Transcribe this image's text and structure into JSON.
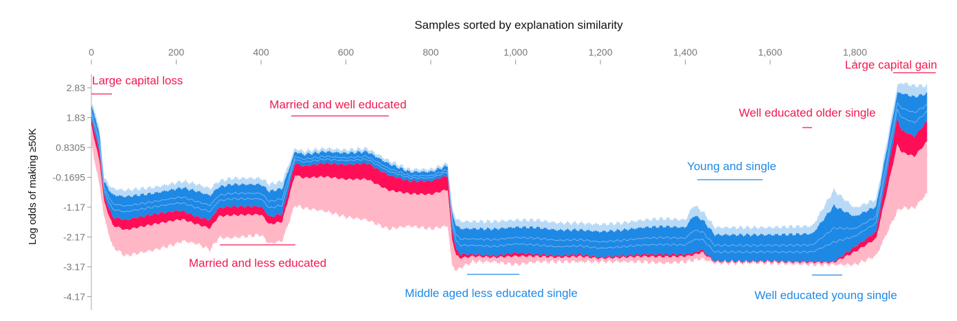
{
  "chart_data": {
    "type": "area",
    "title": "Samples sorted by explanation similarity",
    "xlabel": "",
    "ylabel": "Log odds of making ≥50K",
    "xlim": [
      0,
      1980
    ],
    "ylim": [
      -4.5,
      3.4
    ],
    "grid": false,
    "x_ticks": [
      0,
      200,
      400,
      600,
      800,
      1000,
      1200,
      1400,
      1600,
      1800
    ],
    "x_tick_labels": [
      "0",
      "200",
      "400",
      "600",
      "800",
      "1,000",
      "1,200",
      "1,400",
      "1,600",
      "1,800"
    ],
    "y_ticks": [
      2.83,
      1.83,
      0.8305,
      -0.1695,
      -1.17,
      -2.17,
      -3.17,
      -4.17
    ],
    "y_tick_labels": [
      "2.83",
      "1.83",
      "0.8305",
      "-0.1695",
      "-1.17",
      "-2.17",
      "-3.17",
      "-4.17"
    ],
    "colors": {
      "positive": "#ff0d57",
      "positive_light": "#ffb7c5",
      "negative": "#1e88e5",
      "negative_light": "#b8daf7",
      "annot_red": "#f0194f",
      "annot_blue": "#1e88e5"
    },
    "series": [
      {
        "x": [
          0,
          10,
          20,
          30,
          50,
          80,
          150,
          200,
          215,
          250,
          280,
          300,
          330,
          400,
          420,
          450,
          480,
          500,
          550,
          600,
          650,
          700,
          750,
          800,
          840,
          850,
          860,
          870,
          900,
          950,
          1000,
          1050,
          1100,
          1150,
          1200,
          1250,
          1300,
          1350,
          1400,
          1420,
          1440,
          1470,
          1500,
          1600,
          1700,
          1750,
          1800,
          1850,
          1900,
          1910,
          1940,
          1970
        ],
        "output": [
          1.8,
          1.2,
          0.6,
          -0.8,
          -1.5,
          -1.6,
          -1.4,
          -1.3,
          -1.3,
          -1.5,
          -1.6,
          -1.2,
          -1.15,
          -1.15,
          -1.5,
          -1.4,
          0.3,
          0.2,
          0.3,
          0.25,
          0.3,
          -0.1,
          -0.3,
          -0.3,
          -0.1,
          -1.9,
          -2.6,
          -2.75,
          -2.75,
          -2.8,
          -2.7,
          -2.75,
          -2.8,
          -2.75,
          -2.85,
          -2.8,
          -2.75,
          -2.75,
          -2.75,
          -2.7,
          -2.6,
          -3.0,
          -3.0,
          -3.0,
          -3.0,
          -3.0,
          -2.5,
          -2.0,
          1.8,
          1.4,
          1.2,
          1.7
        ],
        "top": [
          2.3,
          2.0,
          1.3,
          -0.2,
          -0.55,
          -0.6,
          -0.5,
          -0.35,
          -0.3,
          -0.4,
          -0.55,
          -0.3,
          -0.2,
          -0.2,
          -0.4,
          -0.3,
          0.8,
          0.7,
          0.8,
          0.75,
          0.8,
          0.4,
          0.1,
          0.1,
          0.3,
          -1.2,
          -1.55,
          -1.65,
          -1.65,
          -1.65,
          -1.6,
          -1.6,
          -1.7,
          -1.7,
          -1.75,
          -1.7,
          -1.6,
          -1.55,
          -1.6,
          -1.1,
          -1.3,
          -1.85,
          -1.85,
          -1.85,
          -1.8,
          -0.6,
          -1.2,
          -0.9,
          2.9,
          3.0,
          2.9,
          2.9
        ],
        "bottom": [
          1.0,
          0.2,
          -0.5,
          -1.5,
          -2.5,
          -2.8,
          -2.6,
          -2.4,
          -2.3,
          -2.4,
          -2.6,
          -2.2,
          -2.2,
          -2.1,
          -2.4,
          -2.3,
          -1.1,
          -1.2,
          -1.3,
          -1.5,
          -1.6,
          -1.9,
          -1.8,
          -1.9,
          -1.8,
          -3.1,
          -3.3,
          -3.2,
          -3.0,
          -3.0,
          -3.1,
          -3.0,
          -3.0,
          -3.0,
          -3.0,
          -3.0,
          -3.0,
          -3.05,
          -3.0,
          -2.95,
          -2.9,
          -3.05,
          -3.05,
          -3.05,
          -3.1,
          -3.1,
          -3.1,
          -2.8,
          -1.3,
          -1.2,
          -1.2,
          -0.7
        ]
      }
    ],
    "annotations": [
      {
        "label": "Large capital loss",
        "x_range": [
          0,
          50
        ],
        "group": "red"
      },
      {
        "label": "Married and well educated",
        "x_range": [
          475,
          700
        ],
        "group": "red"
      },
      {
        "label": "Married and less educated",
        "x_range": [
          305,
          480
        ],
        "group": "red"
      },
      {
        "label": "Middle aged less educated single",
        "x_range": [
          888,
          1010
        ],
        "group": "blue"
      },
      {
        "label": "Young and single",
        "x_range": [
          1440,
          1590
        ],
        "group": "blue"
      },
      {
        "label": "Well educated older single",
        "x_range": [
          1690,
          1710
        ],
        "group": "red"
      },
      {
        "label": "Well educated young single",
        "x_range": [
          1700,
          1775
        ],
        "group": "blue"
      },
      {
        "label": "Large capital gain",
        "x_range": [
          1900,
          1980
        ],
        "group": "red"
      }
    ]
  }
}
